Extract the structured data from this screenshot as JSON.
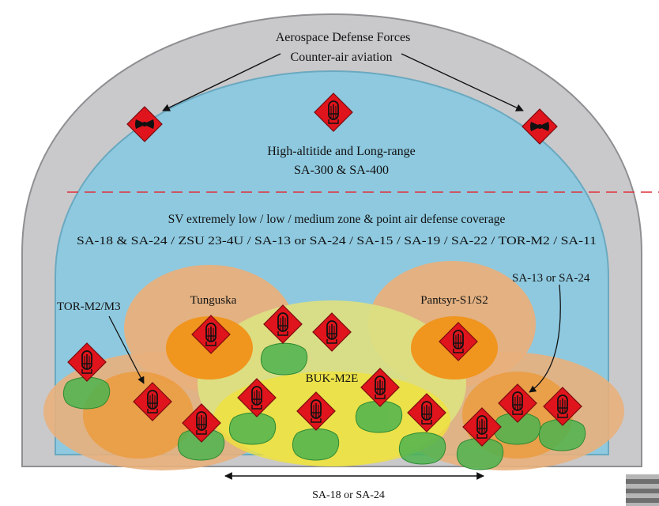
{
  "labels": {
    "aerospace": "Aerospace Defense Forces",
    "counter_air": "Counter-air aviation",
    "high_alt_line1": "High-altitide and Long-range",
    "high_alt_line2": "SA-300 & SA-400",
    "sv_line1": "SV extremely low / low / medium  zone & point air defense coverage",
    "sv_line2": "SA-18 & SA-24 / ZSU 23-4U / SA-13 or SA-24 / SA-15 / SA-19 / SA-22 / TOR-M2 / SA-11",
    "tor": "TOR-M2/M3",
    "tunguska": "Tunguska",
    "pantsyr": "Pantsyr-S1/S2",
    "sa13": "SA-13 or SA-24",
    "buk": "BUK-M2E",
    "manpads": "SA-18 or SA-24"
  },
  "colors": {
    "outer_dome": "#c9c9cb",
    "inner_dome": "#8ec9df",
    "dashed_line": "#e0303a",
    "large_zone": "#e8b07c",
    "medium_zone": "#f0951e",
    "buk_zone": "#dcdf82",
    "manpads_zone": "#4db34f",
    "symbol_fill": "#e0141c"
  },
  "icons": {
    "aircraft": "aircraft-symbol-icon",
    "missile": "missile-launcher-symbol-icon"
  }
}
